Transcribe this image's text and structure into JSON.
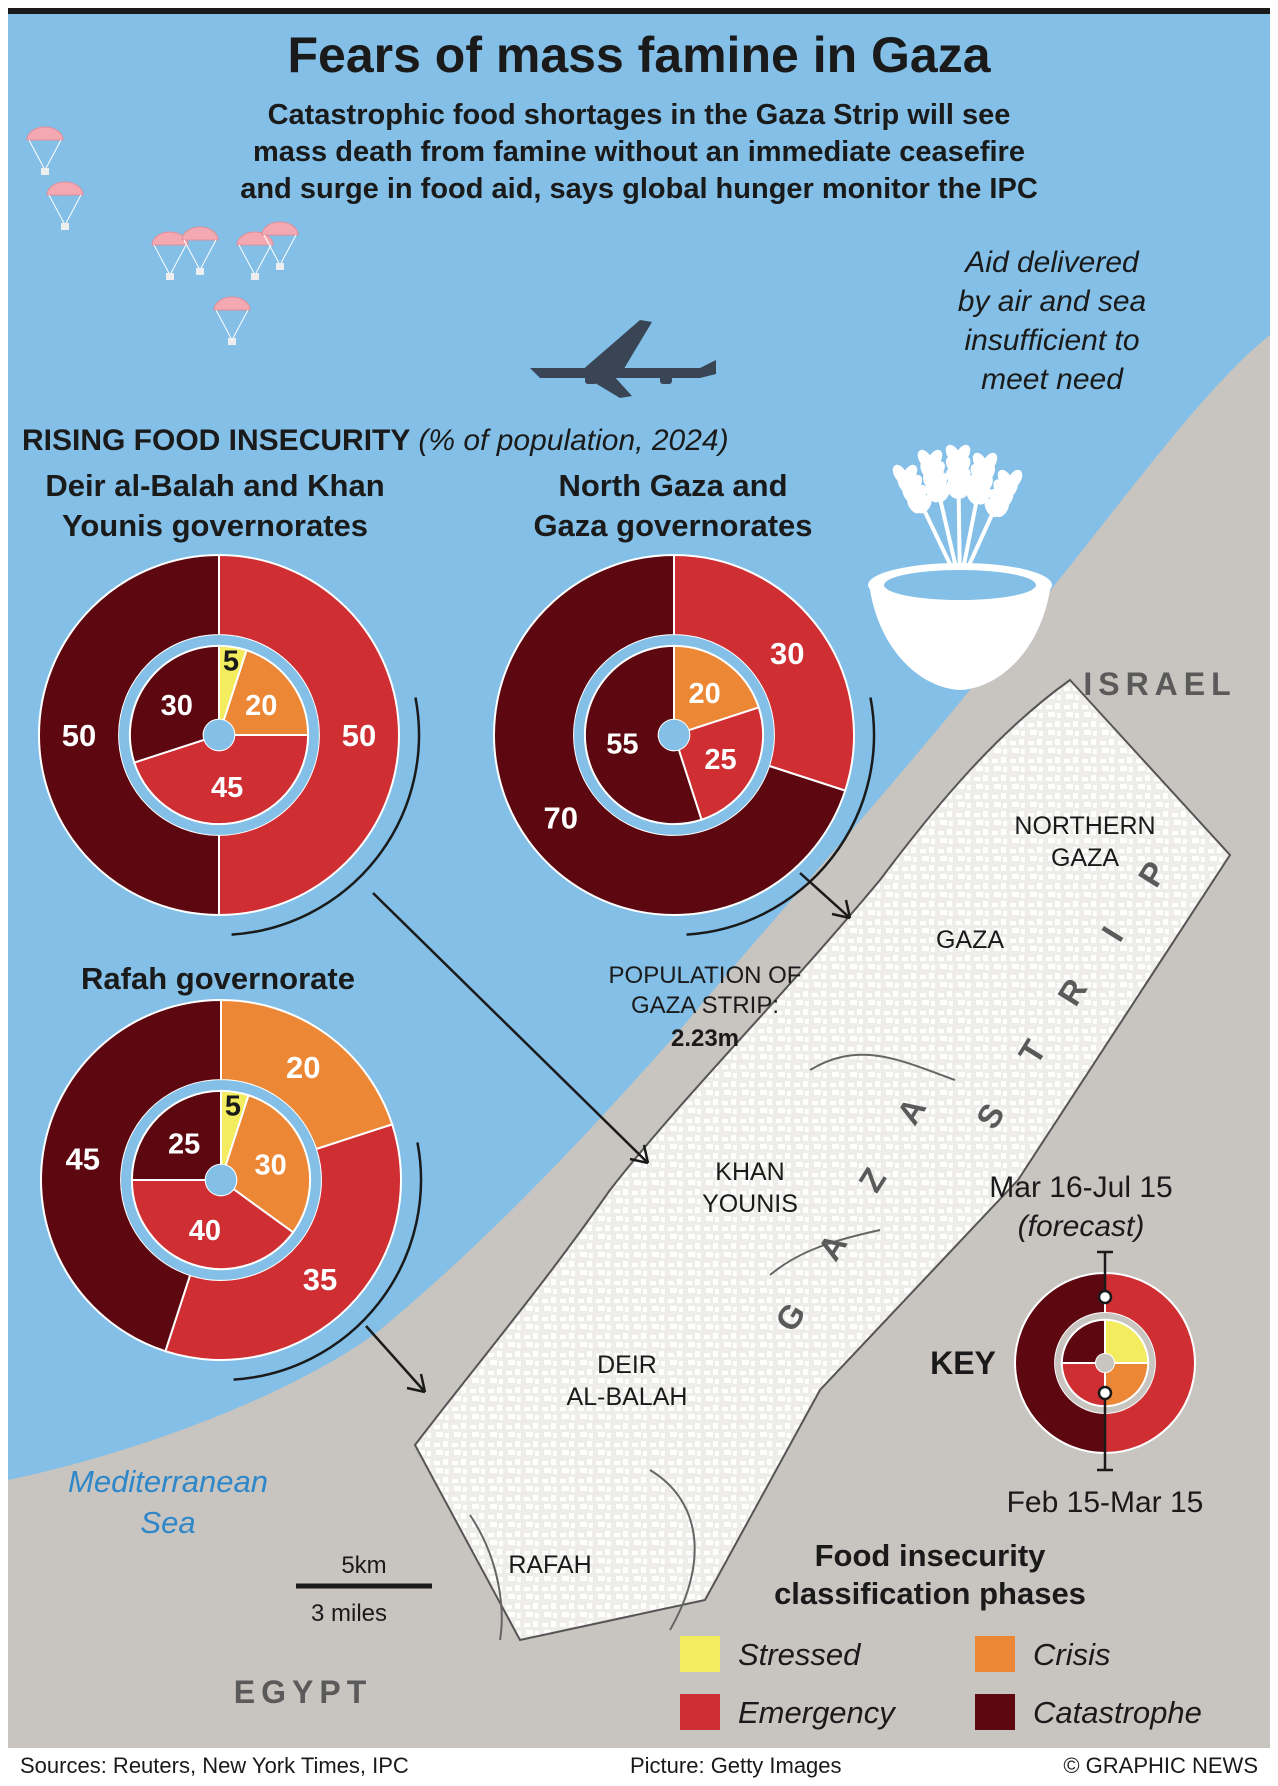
{
  "title": "Fears of mass famine in Gaza",
  "subtitle_lines": [
    "Catastrophic food shortages in the Gaza Strip will see",
    "mass death from famine without an immediate ceasefire",
    "and surge in food aid, says global hunger monitor the IPC"
  ],
  "aid_note_lines": [
    "Aid delivered",
    "by air and sea",
    "insufficient to",
    "meet need"
  ],
  "section_heading": "RISING FOOD INSECURITY",
  "section_heading_note": "(% of population, 2024)",
  "chart_data": [
    {
      "type": "pie",
      "title_lines": [
        "Deir al-Balah and Khan",
        "Younis governorates"
      ],
      "rings": [
        {
          "period": "Mar 16-Jul 15",
          "slices": [
            {
              "phase": "Emergency",
              "value": 50
            },
            {
              "phase": "Catastrophe",
              "value": 50
            }
          ]
        },
        {
          "period": "Feb 15-Mar 15",
          "slices": [
            {
              "phase": "Stressed",
              "value": 5
            },
            {
              "phase": "Crisis",
              "value": 20
            },
            {
              "phase": "Emergency",
              "value": 45
            },
            {
              "phase": "Catastrophe",
              "value": 30
            }
          ]
        }
      ]
    },
    {
      "type": "pie",
      "title_lines": [
        "North Gaza and",
        "Gaza governorates"
      ],
      "rings": [
        {
          "period": "Mar 16-Jul 15",
          "slices": [
            {
              "phase": "Emergency",
              "value": 30
            },
            {
              "phase": "Catastrophe",
              "value": 70
            }
          ]
        },
        {
          "period": "Feb 15-Mar 15",
          "slices": [
            {
              "phase": "Crisis",
              "value": 20
            },
            {
              "phase": "Emergency",
              "value": 25
            },
            {
              "phase": "Catastrophe",
              "value": 55
            }
          ]
        }
      ]
    },
    {
      "type": "pie",
      "title_lines": [
        "Rafah governorate"
      ],
      "rings": [
        {
          "period": "Mar 16-Jul 15",
          "slices": [
            {
              "phase": "Crisis",
              "value": 20
            },
            {
              "phase": "Emergency",
              "value": 35
            },
            {
              "phase": "Catastrophe",
              "value": 45
            }
          ]
        },
        {
          "period": "Feb 15-Mar 15",
          "slices": [
            {
              "phase": "Stressed",
              "value": 5
            },
            {
              "phase": "Crisis",
              "value": 30
            },
            {
              "phase": "Emergency",
              "value": 40
            },
            {
              "phase": "Catastrophe",
              "value": 25
            }
          ]
        }
      ]
    }
  ],
  "phase_colors": {
    "Stressed": "#f2ec5e",
    "Crisis": "#ec8735",
    "Emergency": "#cf2e33",
    "Catastrophe": "#5d0710"
  },
  "population": {
    "lines": [
      "POPULATION OF",
      "GAZA STRIP:"
    ],
    "value": "2.23m"
  },
  "map": {
    "israel": "ISRAEL",
    "egypt": "EGYPT",
    "sea_lines": [
      "Mediterranean",
      "Sea"
    ],
    "strip_letters": [
      "G",
      "A",
      "Z",
      "A",
      "S",
      "T",
      "R",
      "I",
      "P"
    ],
    "regions": [
      {
        "lines": [
          "NORTHERN",
          "GAZA"
        ]
      },
      {
        "lines": [
          "GAZA"
        ]
      },
      {
        "lines": [
          "KHAN",
          "YOUNIS"
        ]
      },
      {
        "lines": [
          "DEIR",
          "AL-BALAH"
        ]
      },
      {
        "lines": [
          "RAFAH"
        ]
      }
    ],
    "scale_top": "5km",
    "scale_bottom": "3 miles"
  },
  "key": {
    "label": "KEY",
    "outer_period": "Mar 16-Jul 15",
    "outer_note": "(forecast)",
    "inner_period": "Feb 15-Mar 15"
  },
  "legend": {
    "title_lines": [
      "Food insecurity",
      "classification phases"
    ],
    "items": [
      "Stressed",
      "Crisis",
      "Emergency",
      "Catastrophe"
    ]
  },
  "footer": {
    "sources": "Sources: Reuters, New York Times, IPC",
    "picture": "Picture: Getty Images",
    "credit": "© GRAPHIC NEWS"
  }
}
